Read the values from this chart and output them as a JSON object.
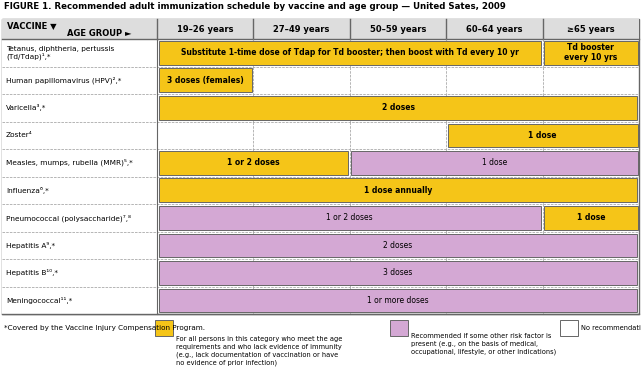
{
  "title": "FIGURE 1. Recommended adult immunization schedule by vaccine and age group — United Sates, 2009",
  "age_groups": [
    "19–26 years",
    "27–49 years",
    "50–59 years",
    "60–64 years",
    "≥65 years"
  ],
  "vaccines": [
    "Tetanus, diphtheria, pertussis\n(Td/Tdap)¹,*",
    "Human papillomavirus (HPV)²,*",
    "Varicella³,*",
    "Zoster⁴",
    "Measles, mumps, rubella (MMR)⁵,*",
    "Influenza⁶,*",
    "Pneumococcal (polysaccharide)⁷,⁸",
    "Hepatitis A⁹,*",
    "Hepatitis B¹⁰,*",
    "Meningococcal¹¹,*"
  ],
  "yellow": "#F5C518",
  "lavender": "#D4A8D4",
  "white_cell": "#FFFFFF",
  "border_color": "#666666",
  "grid_color": "#999999",
  "header_bg": "#DDDDDD",
  "rows": [
    {
      "segments": [
        {
          "cols": [
            0,
            1,
            2,
            3
          ],
          "color": "yellow",
          "text": "Substitute 1-time dose of Tdap for Td booster; then boost with Td every 10 yr",
          "bold": true
        },
        {
          "cols": [
            4
          ],
          "color": "yellow",
          "text": "Td booster\nevery 10 yrs",
          "bold": true
        }
      ]
    },
    {
      "segments": [
        {
          "cols": [
            0
          ],
          "color": "yellow",
          "text": "3 doses (females)",
          "bold": true
        },
        {
          "cols": [
            1,
            2,
            3,
            4
          ],
          "color": "white",
          "text": "",
          "bold": false
        }
      ]
    },
    {
      "segments": [
        {
          "cols": [
            0,
            1,
            2,
            3,
            4
          ],
          "color": "yellow",
          "text": "2 doses",
          "bold": true
        }
      ]
    },
    {
      "segments": [
        {
          "cols": [
            0,
            1,
            2
          ],
          "color": "white",
          "text": "",
          "bold": false
        },
        {
          "cols": [
            3,
            4
          ],
          "color": "yellow",
          "text": "1 dose",
          "bold": true
        }
      ]
    },
    {
      "segments": [
        {
          "cols": [
            0,
            1
          ],
          "color": "yellow",
          "text": "1 or 2 doses",
          "bold": true
        },
        {
          "cols": [
            2,
            3,
            4
          ],
          "color": "lavender",
          "text": "1 dose",
          "bold": false
        }
      ]
    },
    {
      "segments": [
        {
          "cols": [
            0,
            1,
            2,
            3,
            4
          ],
          "color": "yellow",
          "text": "1 dose annually",
          "bold": true
        }
      ]
    },
    {
      "segments": [
        {
          "cols": [
            0,
            1,
            2,
            3
          ],
          "color": "lavender",
          "text": "1 or 2 doses",
          "bold": false
        },
        {
          "cols": [
            4
          ],
          "color": "yellow",
          "text": "1 dose",
          "bold": true
        }
      ]
    },
    {
      "segments": [
        {
          "cols": [
            0,
            1,
            2,
            3,
            4
          ],
          "color": "lavender",
          "text": "2 doses",
          "bold": false
        }
      ]
    },
    {
      "segments": [
        {
          "cols": [
            0,
            1,
            2,
            3,
            4
          ],
          "color": "lavender",
          "text": "3 doses",
          "bold": false
        }
      ]
    },
    {
      "segments": [
        {
          "cols": [
            0,
            1,
            2,
            3,
            4
          ],
          "color": "lavender",
          "text": "1 or more doses",
          "bold": false
        }
      ]
    }
  ],
  "footnote": "*Covered by the Vaccine Injury Compensation Program.",
  "legend_yellow_text": "For all persons in this category who meet the age\nrequirements and who lack evidence of immunity\n(e.g., lack documentation of vaccination or have\nno evidence of prior infection)",
  "legend_lavender_text": "Recommended if some other risk factor is\npresent (e.g., on the basis of medical,\noccupational, lifestyle, or other indications)",
  "legend_white_text": "No recommendation"
}
